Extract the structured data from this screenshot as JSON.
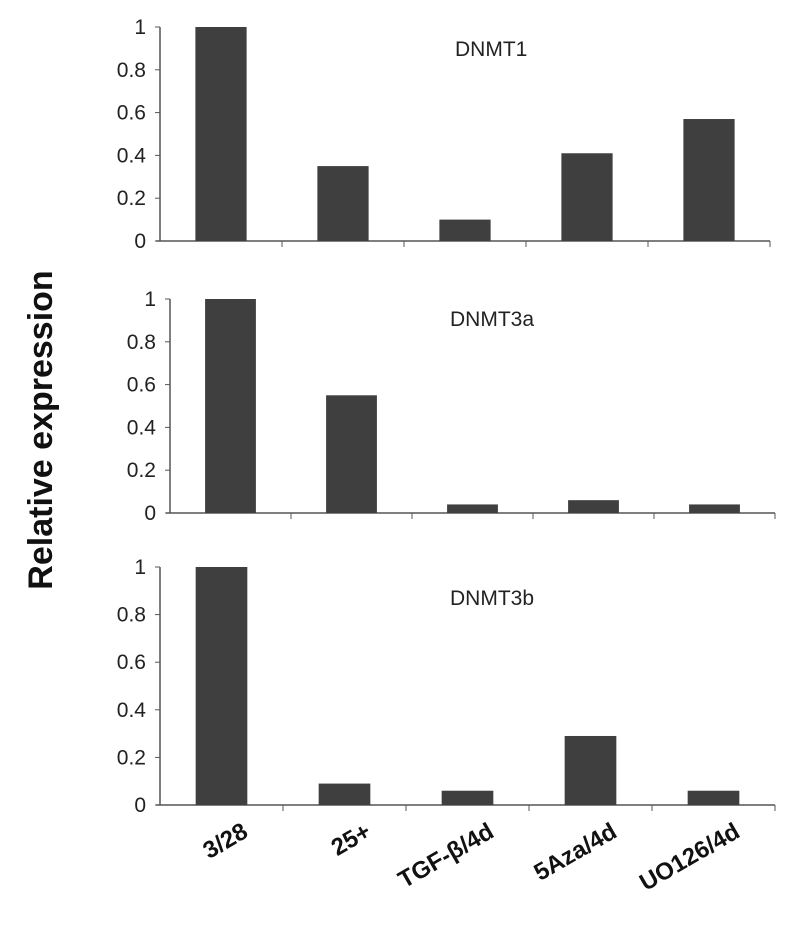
{
  "chart_data": [
    {
      "type": "bar",
      "title": "DNMT1",
      "categories": [
        "3/28",
        "25+",
        "TGF-β/4d",
        "5Aza/4d",
        "UO126/4d"
      ],
      "values": [
        1.0,
        0.35,
        0.1,
        0.41,
        0.57
      ],
      "ylim": [
        0,
        1
      ],
      "yticks": [
        "0",
        "0.2",
        "0.4",
        "0.6",
        "0.8",
        "1"
      ],
      "bar_color": "#3f3f3f",
      "grid": false
    },
    {
      "type": "bar",
      "title": "DNMT3a",
      "categories": [
        "3/28",
        "25+",
        "TGF-β/4d",
        "5Aza/4d",
        "UO126/4d"
      ],
      "values": [
        1.0,
        0.55,
        0.04,
        0.06,
        0.04
      ],
      "ylim": [
        0,
        1
      ],
      "yticks": [
        "0",
        "0.2",
        "0.4",
        "0.6",
        "0.8",
        "1"
      ],
      "bar_color": "#3f3f3f",
      "grid": false
    },
    {
      "type": "bar",
      "title": "DNMT3b",
      "categories": [
        "3/28",
        "25+",
        "TGF-β/4d",
        "5Aza/4d",
        "UO126/4d"
      ],
      "values": [
        1.0,
        0.09,
        0.06,
        0.29,
        0.06
      ],
      "ylim": [
        0,
        1
      ],
      "yticks": [
        "0",
        "0.2",
        "0.4",
        "0.6",
        "0.8",
        "1"
      ],
      "bar_color": "#3f3f3f",
      "grid": false
    }
  ],
  "ylabel": "Relative expression",
  "xlabels": [
    "3/28",
    "25+",
    "TGF-β/4d",
    "5Aza/4d",
    "UO126/4d"
  ]
}
